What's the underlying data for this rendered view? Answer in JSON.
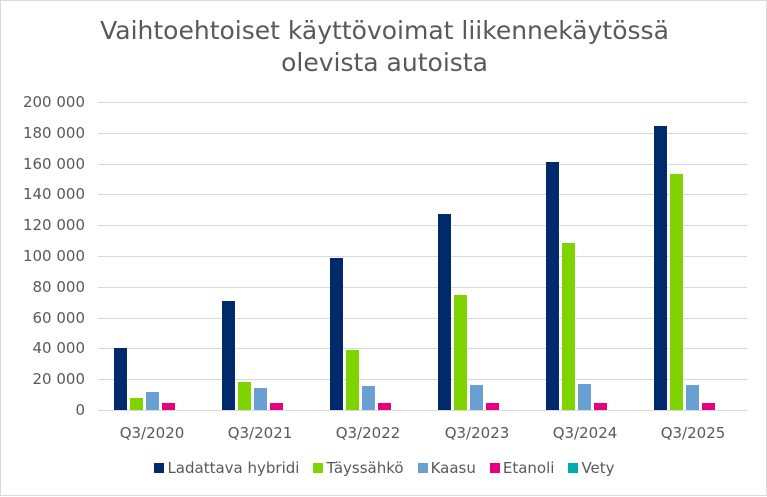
{
  "chart_data": {
    "type": "bar",
    "title": "Vaihtoehtoiset käyttövoimat liikennekäytössä olevista autoista",
    "title_lines": [
      "Vaihtoehtoiset käyttövoimat liikennekäytössä",
      "olevista autoista"
    ],
    "xlabel": "",
    "ylabel": "",
    "ylim": [
      0,
      200000
    ],
    "yticks": [
      0,
      20000,
      40000,
      60000,
      80000,
      100000,
      120000,
      140000,
      160000,
      180000,
      200000
    ],
    "ytick_labels": [
      "0",
      "20 000",
      "40 000",
      "60 000",
      "80 000",
      "100 000",
      "120 000",
      "140 000",
      "160 000",
      "180 000",
      "200 000"
    ],
    "grid": true,
    "legend_position": "bottom",
    "categories": [
      "Q3/2020",
      "Q3/2021",
      "Q3/2022",
      "Q3/2023",
      "Q3/2024",
      "Q3/2025"
    ],
    "series": [
      {
        "name": "Ladattava hybridi",
        "color": "#002a6c",
        "values": [
          40000,
          71000,
          99000,
          127000,
          161000,
          184500
        ]
      },
      {
        "name": "Täyssähkö",
        "color": "#7fd400",
        "values": [
          8000,
          18000,
          39000,
          74500,
          108500,
          153500
        ]
      },
      {
        "name": "Kaasu",
        "color": "#6a9fd4",
        "values": [
          12000,
          14000,
          15500,
          16500,
          17000,
          16500
        ]
      },
      {
        "name": "Etanoli",
        "color": "#e6007e",
        "values": [
          4500,
          4500,
          4500,
          4500,
          4500,
          4500
        ]
      },
      {
        "name": "Vety",
        "color": "#00aaad",
        "values": [
          0,
          0,
          0,
          0,
          0,
          0
        ]
      }
    ]
  }
}
